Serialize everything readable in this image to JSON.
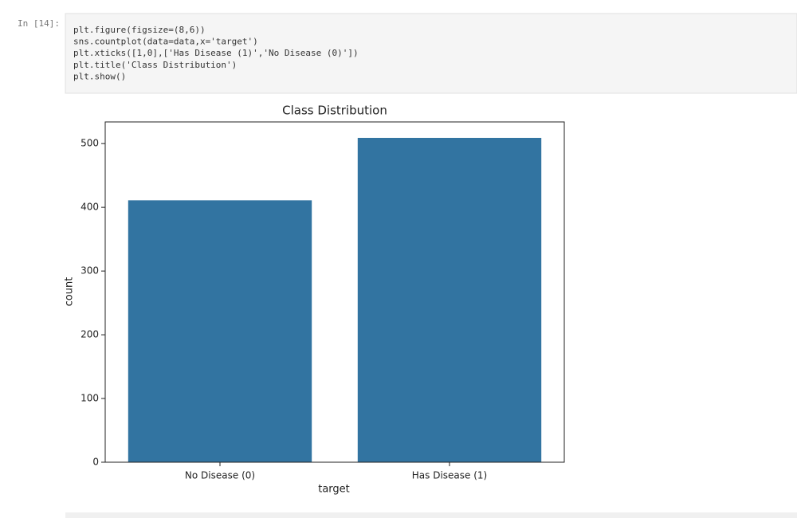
{
  "notebook": {
    "prompt": "In [14]:",
    "code": [
      "plt.figure(figsize=(8,6))",
      "sns.countplot(data=data,x='target')",
      "plt.xticks([1,0],['Has Disease (1)','No Disease (0)'])",
      "plt.title('Class Distribution')",
      "plt.show()"
    ]
  },
  "chart_data": {
    "type": "bar",
    "title": "Class Distribution",
    "x_label": "target",
    "y_label": "count",
    "categories": [
      "No Disease (0)",
      "Has Disease (1)"
    ],
    "values": [
      411,
      509
    ],
    "color": "#3274a1",
    "ylim": [
      0,
      534
    ],
    "yticks": [
      0,
      100,
      200,
      300,
      400,
      500
    ],
    "grid": false
  }
}
